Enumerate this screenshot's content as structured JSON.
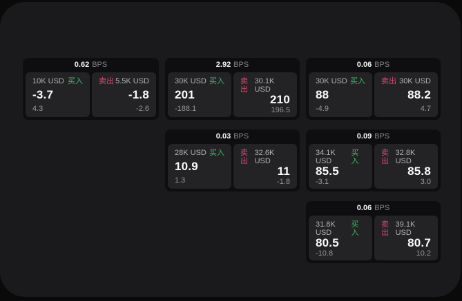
{
  "labels": {
    "bps_unit": "BPS",
    "buy": "买入",
    "sell": "卖出"
  },
  "colors": {
    "buy_green": "#3cbd68",
    "sell_red": "#d64a6e",
    "window_bg": "#1a1a1c",
    "card_bg": "#0e0e10",
    "panel_bg": "#232326"
  },
  "cards": [
    {
      "bps": "0.62",
      "col": 1,
      "row": 1,
      "buy": {
        "amount": "10K USD",
        "value": "-3.7",
        "sub": "4.3"
      },
      "sell": {
        "amount": "5.5K USD",
        "value": "-1.8",
        "sub": "-2.6"
      }
    },
    {
      "bps": "2.92",
      "col": 2,
      "row": 1,
      "buy": {
        "amount": "30K USD",
        "value": "201",
        "sub": "-188.1"
      },
      "sell": {
        "amount": "30.1K USD",
        "value": "210",
        "sub": "196.5"
      }
    },
    {
      "bps": "0.06",
      "col": 3,
      "row": 1,
      "buy": {
        "amount": "30K USD",
        "value": "88",
        "sub": "-4.9"
      },
      "sell": {
        "amount": "30K USD",
        "value": "88.2",
        "sub": "4.7"
      }
    },
    {
      "bps": "0.03",
      "col": 2,
      "row": 2,
      "buy": {
        "amount": "28K USD",
        "value": "10.9",
        "sub": "1.3"
      },
      "sell": {
        "amount": "32.6K USD",
        "value": "11",
        "sub": "-1.8"
      }
    },
    {
      "bps": "0.09",
      "col": 3,
      "row": 2,
      "buy": {
        "amount": "34.1K USD",
        "value": "85.5",
        "sub": "-3.1"
      },
      "sell": {
        "amount": "32.8K USD",
        "value": "85.8",
        "sub": "3.0"
      }
    },
    {
      "bps": "0.06",
      "col": 3,
      "row": 3,
      "buy": {
        "amount": "31.8K USD",
        "value": "80.5",
        "sub": "-10.8"
      },
      "sell": {
        "amount": "39.1K USD",
        "value": "80.7",
        "sub": "10.2"
      }
    }
  ]
}
